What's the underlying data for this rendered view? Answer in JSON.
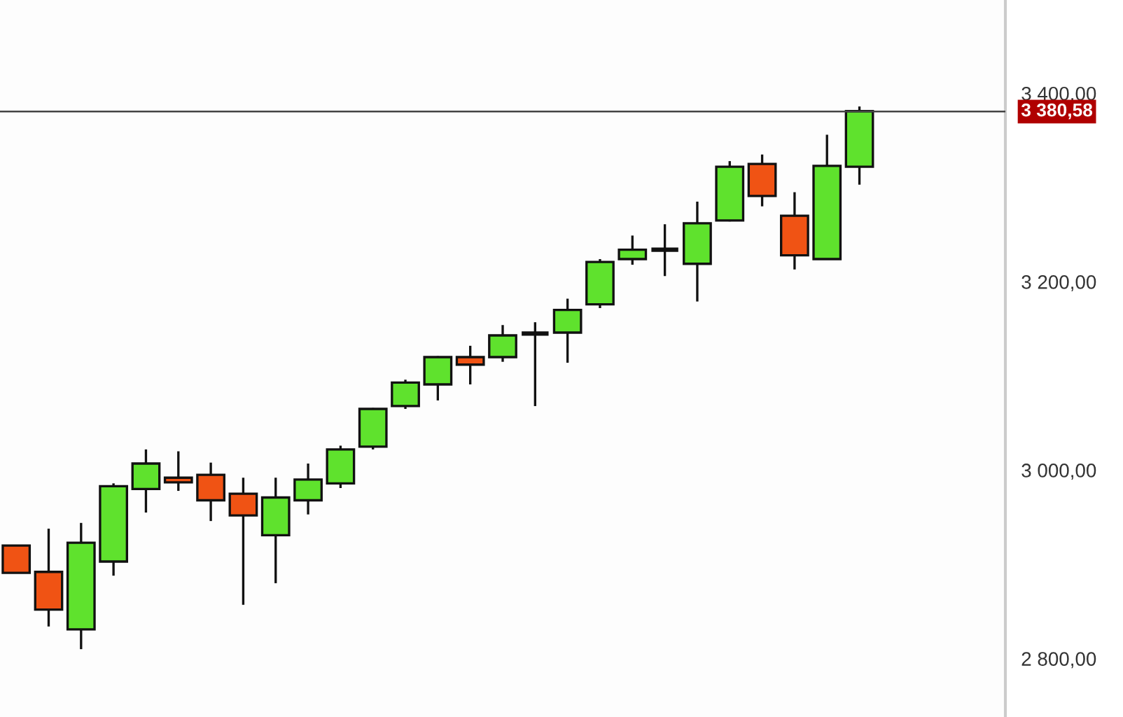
{
  "chart_data": {
    "type": "candlestick",
    "categories": [
      null,
      null,
      null,
      null,
      null,
      null,
      null,
      null,
      null,
      null,
      null,
      null,
      null,
      null,
      null,
      null,
      null,
      null,
      null,
      null,
      null,
      null,
      null,
      null,
      null,
      null,
      null,
      null,
      null,
      null,
      null
    ],
    "ohlc": [
      [
        2920,
        2920,
        2891,
        2891
      ],
      [
        2892,
        2938,
        2834,
        2852
      ],
      [
        2831,
        2944,
        2810,
        2923
      ],
      [
        2903,
        2986,
        2888,
        2983
      ],
      [
        2980,
        3022,
        2955,
        3007
      ],
      [
        2992,
        3020,
        2978,
        2987
      ],
      [
        2995,
        3008,
        2946,
        2968
      ],
      [
        2975,
        2992,
        2857,
        2952
      ],
      [
        2931,
        2992,
        2880,
        2971
      ],
      [
        2968,
        3007,
        2953,
        2990
      ],
      [
        2986,
        3026,
        2981,
        3022
      ],
      [
        3025,
        3066,
        3022,
        3065
      ],
      [
        3068,
        3096,
        3065,
        3093
      ],
      [
        3091,
        3121,
        3074,
        3120
      ],
      [
        3120,
        3132,
        3091,
        3112
      ],
      [
        3120,
        3154,
        3115,
        3143
      ],
      [
        3145,
        3157,
        3068,
        3145
      ],
      [
        3146,
        3182,
        3114,
        3170
      ],
      [
        3176,
        3224,
        3172,
        3221
      ],
      [
        3224,
        3249,
        3218,
        3234
      ],
      [
        3234,
        3261,
        3206,
        3234
      ],
      [
        3219,
        3285,
        3179,
        3262
      ],
      [
        3265,
        3328,
        3264,
        3322
      ],
      [
        3325,
        3335,
        3280,
        3291
      ],
      [
        3270,
        3295,
        3213,
        3228
      ],
      [
        3224,
        3356,
        3224,
        3323
      ],
      [
        3322,
        3386,
        3303,
        3381
      ],
      null,
      null,
      null,
      null
    ],
    "colors": [
      "#f05314",
      "#f05314",
      "#5fe22d",
      "#5fe22d",
      "#5fe22d",
      "#f05314",
      "#f05314",
      "#f05314",
      "#5fe22d",
      "#5fe22d",
      "#5fe22d",
      "#5fe22d",
      "#5fe22d",
      "#5fe22d",
      "#f05314",
      "#5fe22d",
      "#111111",
      "#5fe22d",
      "#5fe22d",
      "#5fe22d",
      "#111111",
      "#5fe22d",
      "#5fe22d",
      "#f05314",
      "#f05314",
      "#5fe22d",
      "#5fe22d",
      null,
      null,
      null,
      null
    ],
    "ylim": [
      2738,
      3499
    ],
    "yticks": [
      {
        "value": 2800,
        "label": "2 800,00"
      },
      {
        "value": 3000,
        "label": "3 000,00"
      },
      {
        "value": 3200,
        "label": "3 200,00"
      },
      {
        "value": 3400,
        "label": "3 400,00"
      }
    ],
    "ref_lines": [
      {
        "axis": "y",
        "value": 3380.58,
        "label": "3 380,58"
      }
    ],
    "tick_labels": "y",
    "grid": false,
    "legend": false
  }
}
